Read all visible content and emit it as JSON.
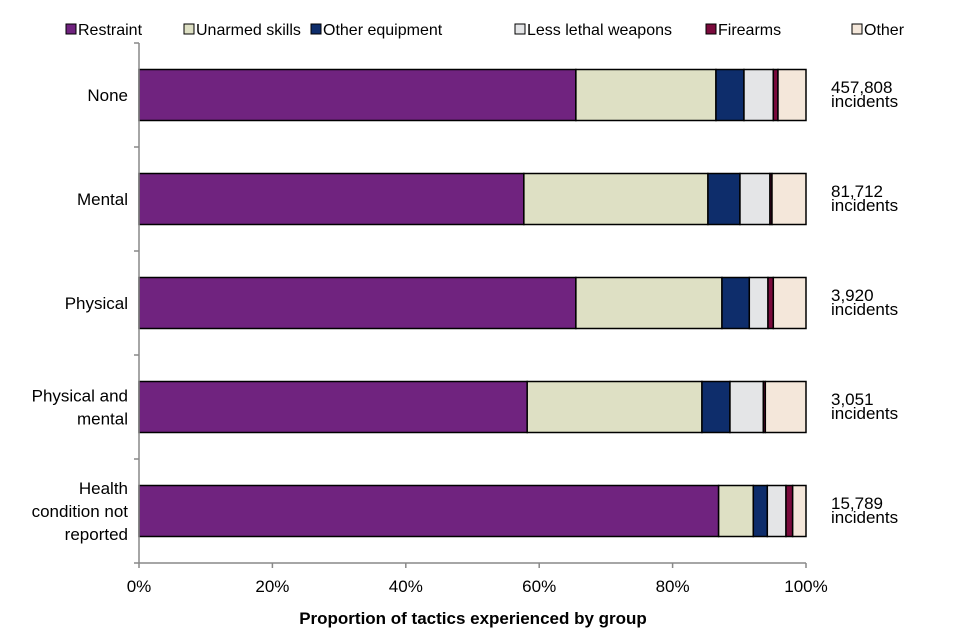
{
  "chart_data": {
    "type": "bar",
    "orientation": "horizontal",
    "stacked": true,
    "percent_stacked": true,
    "title": "",
    "xlabel": "Proportion of tactics experienced by group",
    "ylabel": "",
    "xlim": [
      0,
      100
    ],
    "x_ticks": [
      "0%",
      "20%",
      "40%",
      "60%",
      "80%",
      "100%"
    ],
    "grid": false,
    "legend_position": "top",
    "categories": [
      [
        "None"
      ],
      [
        "Mental"
      ],
      [
        "Physical"
      ],
      [
        "Physical and",
        "mental"
      ],
      [
        "Health",
        "condition not",
        "reported"
      ]
    ],
    "annotations": [
      [
        "457,808",
        "incidents"
      ],
      [
        "81,712",
        "incidents"
      ],
      [
        "3,920",
        "incidents"
      ],
      [
        "3,051",
        "incidents"
      ],
      [
        "15,789",
        "incidents"
      ]
    ],
    "series": [
      {
        "name": "Restraint",
        "color": "#70237F",
        "values": [
          65.5,
          57.7,
          65.5,
          58.2,
          86.9
        ]
      },
      {
        "name": "Unarmed skills",
        "color": "#DEE0C4",
        "values": [
          21.0,
          27.6,
          21.9,
          26.2,
          5.2
        ]
      },
      {
        "name": "Other equipment",
        "color": "#0E2D6B",
        "values": [
          4.2,
          4.8,
          4.1,
          4.2,
          2.1
        ]
      },
      {
        "name": "Less lethal weapons",
        "color": "#E4E5E7",
        "values": [
          4.4,
          4.5,
          2.8,
          5.0,
          2.8
        ]
      },
      {
        "name": "Firearms",
        "color": "#7A0A3C",
        "values": [
          0.7,
          0.3,
          0.8,
          0.3,
          1.0
        ]
      },
      {
        "name": "Other",
        "color": "#F4E7DA",
        "values": [
          4.2,
          5.1,
          4.9,
          6.1,
          2.0
        ]
      }
    ]
  }
}
